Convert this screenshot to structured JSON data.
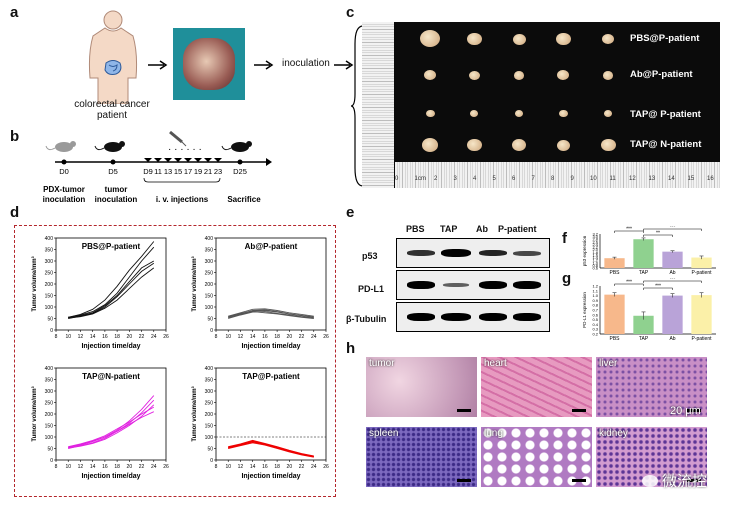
{
  "panels": {
    "a": "a",
    "b": "b",
    "c": "c",
    "d": "d",
    "e": "e",
    "f": "f",
    "g": "g",
    "h": "h"
  },
  "panel_a": {
    "patient_label_1": "colorectal cancer",
    "patient_label_2": "patient",
    "inoculation": "inoculation"
  },
  "panel_b": {
    "days": [
      "D0",
      "D5",
      "D9",
      "11",
      "13",
      "15",
      "17",
      "19",
      "21",
      "23",
      "D25"
    ],
    "pdx_label_1": "PDX-tumor",
    "pdx_label_2": "inoculation",
    "tumor_label_1": "tumor",
    "tumor_label_2": "inoculation",
    "iv_label": "i. v. injections",
    "sacrifice_label": "Sacrifice"
  },
  "panel_c": {
    "rows": [
      "PBS@P-patient",
      "Ab@P-patient",
      "TAP@ P-patient",
      "TAP@ N-patient"
    ],
    "ruler_numbers": [
      "0",
      "1cm",
      "2",
      "3",
      "4",
      "5",
      "6",
      "7",
      "8",
      "9",
      "10",
      "11",
      "12",
      "13",
      "14",
      "15",
      "16"
    ]
  },
  "panel_d": {
    "xlabel": "Injection time/day",
    "ylabel": "Tumor volume/mm³",
    "charts": [
      {
        "title": "PBS@P-patient"
      },
      {
        "title": "Ab@P-patient"
      },
      {
        "title": "TAP@N-patient"
      },
      {
        "title": "TAP@P-patient"
      }
    ]
  },
  "panel_e": {
    "lanes": [
      "PBS",
      "TAP",
      "Ab",
      "P-patient"
    ],
    "proteins": [
      "p53",
      "PD-L1",
      "β-Tubulin"
    ]
  },
  "panel_f": {
    "ylabel": "p53 expression",
    "sig": [
      "***",
      "**",
      "***"
    ]
  },
  "panel_g": {
    "ylabel": "PD-L1 expression",
    "sig": [
      "***",
      "***",
      "***"
    ]
  },
  "panel_h": {
    "tissues": [
      "tumor",
      "heart",
      "liver",
      "spleen",
      "lung",
      "kidney"
    ],
    "scale": "20 μm",
    "watermark": "微流控"
  },
  "chart_data": [
    {
      "type": "line",
      "title": "PBS@P-patient",
      "xlabel": "Injection time/day",
      "ylabel": "Tumor volume/mm³",
      "xlim": [
        8,
        26
      ],
      "ylim": [
        0,
        400
      ],
      "xticks": [
        "8",
        "10",
        "12",
        "14",
        "16",
        "18",
        "20",
        "22",
        "24",
        "26"
      ],
      "yticks": [
        "0",
        "50",
        "100",
        "150",
        "200",
        "250",
        "300",
        "350",
        "400"
      ],
      "series": [
        {
          "x": [
            10,
            12,
            14,
            16,
            18,
            20,
            22,
            24
          ],
          "y": [
            55,
            65,
            80,
            110,
            160,
            230,
            300,
            360
          ]
        },
        {
          "x": [
            10,
            12,
            14,
            16,
            18,
            20,
            22,
            24
          ],
          "y": [
            55,
            62,
            75,
            105,
            150,
            210,
            270,
            300
          ]
        },
        {
          "x": [
            10,
            12,
            14,
            16,
            18,
            20,
            22,
            24
          ],
          "y": [
            50,
            60,
            72,
            100,
            145,
            200,
            255,
            290
          ]
        },
        {
          "x": [
            10,
            12,
            14,
            16,
            18,
            20,
            22,
            24
          ],
          "y": [
            52,
            58,
            70,
            95,
            130,
            180,
            230,
            270
          ]
        },
        {
          "x": [
            10,
            12,
            14,
            16,
            18,
            20,
            22,
            24
          ],
          "y": [
            55,
            68,
            90,
            130,
            190,
            260,
            320,
            385
          ]
        }
      ]
    },
    {
      "type": "line",
      "title": "Ab@P-patient",
      "xlabel": "Injection time/day",
      "ylabel": "Tumor volume/mm³",
      "xlim": [
        8,
        26
      ],
      "ylim": [
        0,
        400
      ],
      "xticks": [
        "8",
        "10",
        "12",
        "14",
        "16",
        "18",
        "20",
        "22",
        "24",
        "26"
      ],
      "yticks": [
        "0",
        "50",
        "100",
        "150",
        "200",
        "250",
        "300",
        "350",
        "400"
      ],
      "series": [
        {
          "x": [
            10,
            12,
            14,
            16,
            18,
            20,
            22,
            24
          ],
          "y": [
            55,
            70,
            85,
            88,
            80,
            70,
            62,
            55
          ]
        },
        {
          "x": [
            10,
            12,
            14,
            16,
            18,
            20,
            22,
            24
          ],
          "y": [
            50,
            65,
            78,
            80,
            72,
            65,
            58,
            52
          ]
        },
        {
          "x": [
            10,
            12,
            14,
            16,
            18,
            20,
            22,
            24
          ],
          "y": [
            60,
            75,
            90,
            92,
            85,
            75,
            68,
            60
          ]
        },
        {
          "x": [
            10,
            12,
            14,
            16,
            18,
            20,
            22,
            24
          ],
          "y": [
            52,
            68,
            80,
            75,
            70,
            62,
            55,
            50
          ]
        },
        {
          "x": [
            10,
            12,
            14,
            16,
            18,
            20,
            22,
            24
          ],
          "y": [
            58,
            72,
            82,
            85,
            78,
            70,
            63,
            57
          ]
        }
      ]
    },
    {
      "type": "line",
      "title": "TAP@N-patient",
      "xlabel": "Injection time/day",
      "ylabel": "Tumor volume/mm³",
      "xlim": [
        8,
        26
      ],
      "ylim": [
        0,
        400
      ],
      "xticks": [
        "8",
        "10",
        "12",
        "14",
        "16",
        "18",
        "20",
        "22",
        "24",
        "26"
      ],
      "yticks": [
        "0",
        "50",
        "100",
        "150",
        "200",
        "250",
        "300",
        "350",
        "400"
      ],
      "series": [
        {
          "x": [
            10,
            12,
            14,
            16,
            18,
            20,
            22,
            24
          ],
          "y": [
            55,
            65,
            80,
            100,
            130,
            170,
            220,
            280
          ]
        },
        {
          "x": [
            10,
            12,
            14,
            16,
            18,
            20,
            22,
            24
          ],
          "y": [
            50,
            62,
            75,
            95,
            125,
            160,
            205,
            260
          ]
        },
        {
          "x": [
            10,
            12,
            14,
            16,
            18,
            20,
            22,
            24
          ],
          "y": [
            52,
            60,
            72,
            90,
            118,
            150,
            190,
            240
          ]
        },
        {
          "x": [
            10,
            12,
            14,
            16,
            18,
            20,
            22,
            24
          ],
          "y": [
            55,
            68,
            82,
            100,
            125,
            155,
            185,
            210
          ]
        },
        {
          "x": [
            10,
            12,
            14,
            16,
            18,
            20,
            22,
            24
          ],
          "y": [
            58,
            70,
            85,
            105,
            135,
            165,
            200,
            230
          ]
        }
      ]
    },
    {
      "type": "line",
      "title": "TAP@P-patient",
      "xlabel": "Injection time/day",
      "ylabel": "Tumor volume/mm³",
      "xlim": [
        8,
        26
      ],
      "ylim": [
        0,
        400
      ],
      "reference_y": 100,
      "xticks": [
        "8",
        "10",
        "12",
        "14",
        "16",
        "18",
        "20",
        "22",
        "24",
        "26"
      ],
      "yticks": [
        "0",
        "50",
        "100",
        "150",
        "200",
        "250",
        "300",
        "350",
        "400"
      ],
      "series": [
        {
          "x": [
            10,
            12,
            14,
            16,
            18,
            20,
            22,
            24
          ],
          "y": [
            55,
            68,
            80,
            70,
            55,
            40,
            25,
            15
          ]
        },
        {
          "x": [
            10,
            12,
            14,
            16,
            18,
            20,
            22,
            24
          ],
          "y": [
            50,
            62,
            75,
            65,
            50,
            35,
            22,
            12
          ]
        },
        {
          "x": [
            10,
            12,
            14,
            16,
            18,
            20,
            22,
            24
          ],
          "y": [
            58,
            70,
            85,
            72,
            58,
            42,
            28,
            18
          ]
        },
        {
          "x": [
            10,
            12,
            14,
            16,
            18,
            20,
            22,
            24
          ],
          "y": [
            52,
            65,
            78,
            68,
            52,
            38,
            24,
            14
          ]
        },
        {
          "x": [
            10,
            12,
            14,
            16,
            18,
            20,
            22,
            24
          ],
          "y": [
            56,
            66,
            82,
            70,
            56,
            41,
            27,
            16
          ]
        }
      ]
    },
    {
      "type": "bar",
      "title": "",
      "ylabel": "p53 expression",
      "categories": [
        "PBS",
        "TAP",
        "Ab",
        "P-patient"
      ],
      "values": [
        1.35,
        2.8,
        1.85,
        1.4
      ],
      "errors": [
        0.08,
        0.1,
        0.07,
        0.12
      ],
      "colors": [
        "#f7b88b",
        "#8fd18f",
        "#b9a3d8",
        "#fbf0a8"
      ],
      "ylim": [
        0.6,
        3.2
      ],
      "yticks": [
        "0.6",
        "0.8",
        "1.0",
        "1.2",
        "1.4",
        "1.6",
        "1.8",
        "2.0",
        "2.2",
        "2.4",
        "2.6",
        "2.8",
        "3.0",
        "3.2"
      ]
    },
    {
      "type": "bar",
      "title": "",
      "ylabel": "PD-L1 expression",
      "categories": [
        "PBS",
        "TAP",
        "Ab",
        "P-patient"
      ],
      "values": [
        1.02,
        0.58,
        1.0,
        1.01
      ],
      "errors": [
        0.04,
        0.08,
        0.04,
        0.05
      ],
      "colors": [
        "#f7b88b",
        "#8fd18f",
        "#b9a3d8",
        "#fbf0a8"
      ],
      "ylim": [
        0.2,
        1.2
      ],
      "yticks": [
        "0.2",
        "0.3",
        "0.4",
        "0.5",
        "0.6",
        "0.7",
        "0.8",
        "0.9",
        "1.0",
        "1.1",
        "1.2"
      ]
    }
  ]
}
